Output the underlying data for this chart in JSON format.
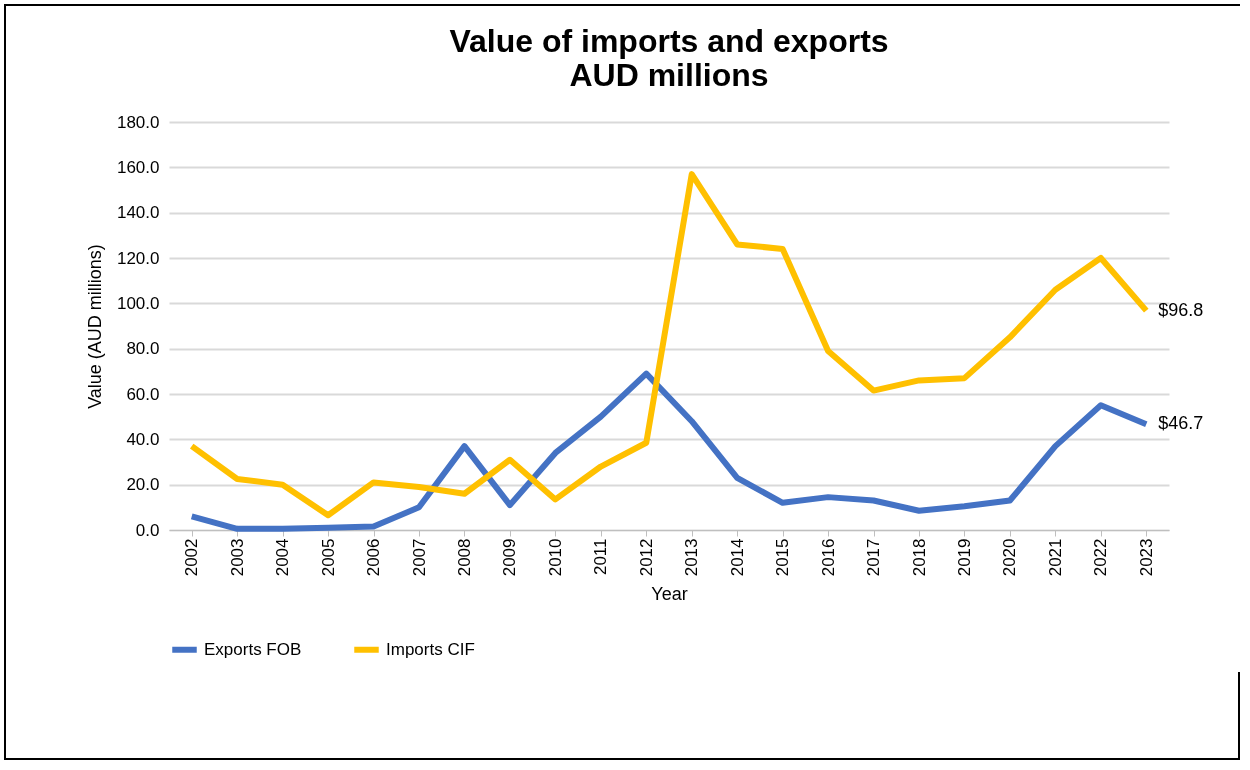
{
  "chart_data": {
    "type": "line",
    "title": [
      "Value of imports and exports",
      "AUD millions"
    ],
    "xlabel": "Year",
    "ylabel": "Value  (AUD millions)",
    "categories": [
      "2002",
      "2003",
      "2004",
      "2005",
      "2006",
      "2007",
      "2008",
      "2009",
      "2010",
      "2011",
      "2012",
      "2013",
      "2014",
      "2015",
      "2016",
      "2017",
      "2018",
      "2019",
      "2020",
      "2021",
      "2022",
      "2023"
    ],
    "series": [
      {
        "name": "Exports FOB",
        "color": "#4472c4",
        "values": [
          6,
          0.5,
          0.5,
          1,
          1.5,
          10,
          37,
          11,
          34,
          50,
          69,
          48,
          23,
          12,
          14.5,
          13,
          8.5,
          10.5,
          13,
          37,
          55,
          46.7
        ],
        "value_labels": [
          null,
          null,
          null,
          null,
          null,
          null,
          null,
          null,
          null,
          null,
          null,
          null,
          null,
          null,
          null,
          null,
          null,
          null,
          null,
          null,
          null,
          "$46.7"
        ]
      },
      {
        "name": "Imports CIF",
        "color": "#ffc000",
        "values": [
          37,
          22.5,
          20,
          6.5,
          21,
          19,
          16,
          31,
          13.5,
          28,
          38.5,
          157,
          126,
          124,
          79,
          61.5,
          66,
          67,
          85,
          106,
          120,
          96.8
        ],
        "value_labels": [
          null,
          null,
          null,
          null,
          null,
          null,
          null,
          null,
          null,
          null,
          null,
          null,
          null,
          null,
          null,
          null,
          null,
          null,
          null,
          null,
          null,
          "$96.8"
        ]
      }
    ],
    "ylim": [
      0,
      180
    ],
    "yticks": [
      {
        "value": 0,
        "label": "0.0"
      },
      {
        "value": 20,
        "label": "20.0"
      },
      {
        "value": 40,
        "label": "40.0"
      },
      {
        "value": 60,
        "label": "60.0"
      },
      {
        "value": 80,
        "label": "80.0"
      },
      {
        "value": 100,
        "label": "100.0"
      },
      {
        "value": 120,
        "label": "120.0"
      },
      {
        "value": 140,
        "label": "140.0"
      },
      {
        "value": 160,
        "label": "160.0"
      },
      {
        "value": 180,
        "label": "180.0"
      }
    ],
    "grid": "y",
    "legend": "bottom",
    "marker": "none",
    "line_style": "solid"
  }
}
